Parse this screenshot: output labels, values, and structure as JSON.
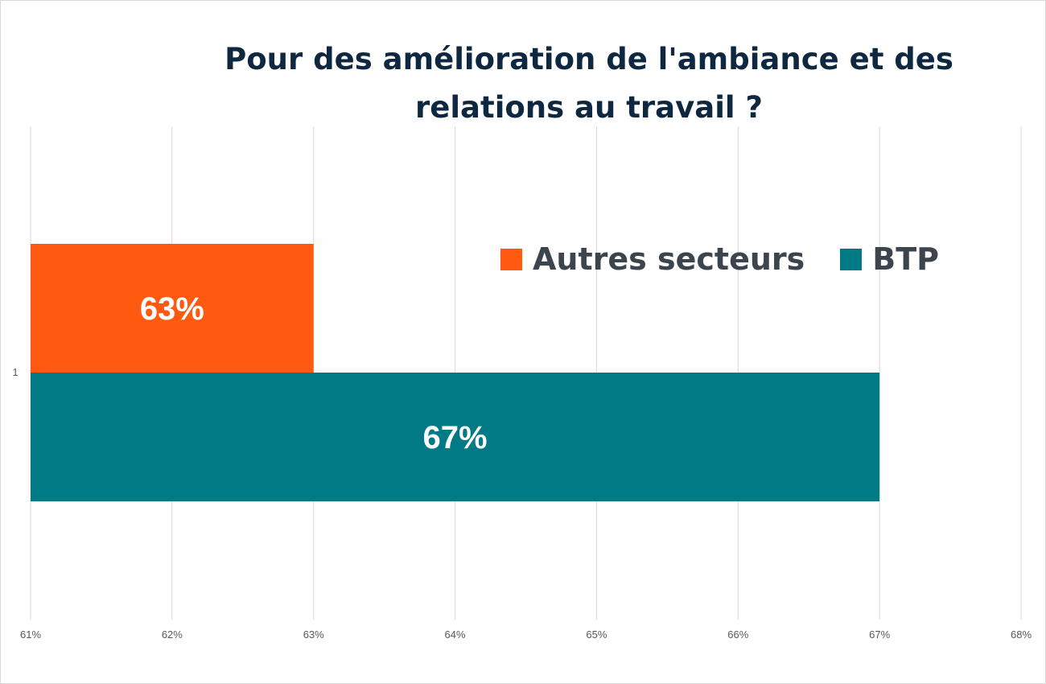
{
  "chart_data": {
    "type": "bar",
    "orientation": "horizontal",
    "title": "Pour des amélioration de l'ambiance et des relations au travail ?",
    "title_lines": [
      "Pour des amélioration de l'ambiance et des",
      "relations au travail ?"
    ],
    "categories": [
      "1"
    ],
    "series": [
      {
        "name": "Autres secteurs",
        "values": [
          63
        ],
        "color": "#ff5a0f",
        "label": "63%"
      },
      {
        "name": "BTP",
        "values": [
          67
        ],
        "color": "#007a85",
        "label": "67%"
      }
    ],
    "x_ticks": [
      "61%",
      "62%",
      "63%",
      "64%",
      "65%",
      "66%",
      "67%",
      "68%"
    ],
    "xlim": [
      61,
      68
    ],
    "grid": true,
    "legend_position": "top-right"
  }
}
